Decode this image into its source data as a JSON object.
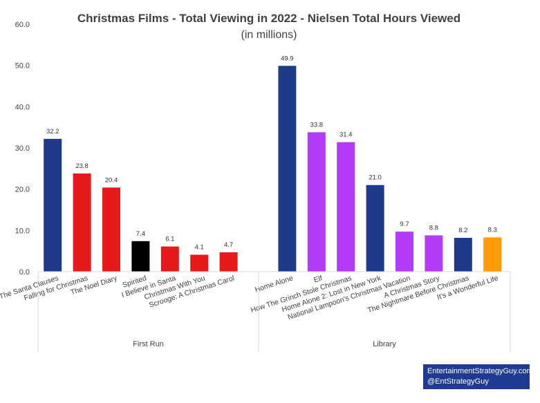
{
  "chart_data": {
    "type": "bar",
    "title": "Christmas Films - Total Viewing in 2022 - Nielsen Total Hours Viewed",
    "subtitle": "(in millions)",
    "ylim": [
      0,
      60
    ],
    "yticks": [
      "0.0",
      "10.0",
      "20.0",
      "30.0",
      "40.0",
      "50.0",
      "60.0"
    ],
    "grid": false,
    "groups": [
      {
        "name": "First Run",
        "categories": [
          "The Santa Clauses",
          "Falling for Christmas",
          "The Noel Diary",
          "Spirited",
          "I Believe in Santa",
          "Christmas With You",
          "Scrooge: A Christmas Carol"
        ],
        "values": [
          32.2,
          23.8,
          20.4,
          7.4,
          6.1,
          4.1,
          4.7
        ],
        "labels": [
          "32.2",
          "23.8",
          "20.4",
          "7.4",
          "6.1",
          "4.1",
          "4.7"
        ],
        "colors": [
          "#1F3A8A",
          "#E8191B",
          "#E8191B",
          "#000000",
          "#E8191B",
          "#E8191B",
          "#E8191B"
        ]
      },
      {
        "name": "Library",
        "categories": [
          "Home Alone",
          "Elf",
          "How The Grinch Stole Christmas",
          "Home Alone 2: Lost in New York",
          "National Lampoon's Christmas Vacation",
          "A Christmas Story",
          "The Nightmare Before Christmas",
          "It's a Wonderful Life"
        ],
        "values": [
          49.9,
          33.8,
          31.4,
          21.0,
          9.7,
          8.8,
          8.2,
          8.3
        ],
        "labels": [
          "49.9",
          "33.8",
          "31.4",
          "21.0",
          "9.7",
          "8.8",
          "8.2",
          "8.3"
        ],
        "colors": [
          "#1F3A8A",
          "#B43BFA",
          "#B43BFA",
          "#1F3A8A",
          "#B43BFA",
          "#B43BFA",
          "#1F3A8A",
          "#FF9A0A"
        ]
      }
    ]
  },
  "credit": {
    "line1": "EntertainmentStrategyGuy.com",
    "line2": "@EntStrategyGuy",
    "color": "#1F3A93"
  }
}
